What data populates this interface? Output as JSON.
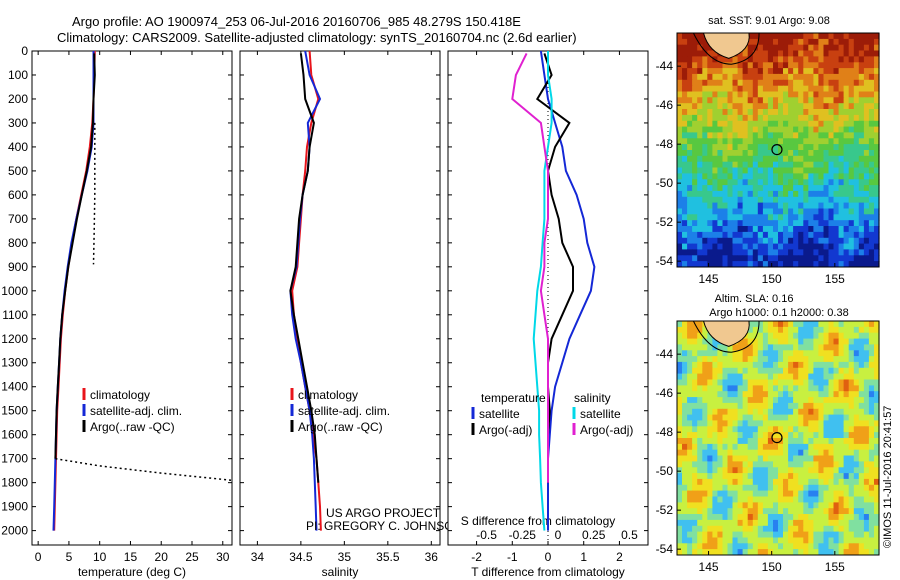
{
  "header": {
    "line1": "Argo profile: AO 1900974_253 06-Jul-2016 20160706_985 48.279S 150.418E",
    "line2": "Climatology: CARS2009. Satellite-adjusted climatology: synTS_20160704.nc (2.6d earlier)"
  },
  "chart_data": [
    {
      "type": "line",
      "panel": "temperature",
      "xlabel": "temperature (deg C)",
      "xlim": [
        -1,
        31.5
      ],
      "ylim": [
        2060,
        0
      ],
      "xticks": [
        0,
        5,
        10,
        15,
        20,
        25,
        30
      ],
      "yticks": [
        0,
        100,
        200,
        300,
        400,
        500,
        600,
        700,
        800,
        900,
        1000,
        1100,
        1200,
        1300,
        1400,
        1500,
        1600,
        1700,
        1800,
        1900,
        2000
      ],
      "legend": [
        "climatology",
        "satellite-adj. clim.",
        "Argo(..raw -QC)"
      ],
      "series": [
        {
          "name": "climatology",
          "color": "#e8141b",
          "x": [
            9.2,
            9.1,
            9.0,
            8.8,
            8.4,
            7.8,
            7.0,
            6.2,
            5.5,
            4.9,
            4.4,
            4.0,
            3.7,
            3.5,
            3.3,
            3.1,
            3.0,
            2.9,
            2.8,
            2.7,
            2.6
          ],
          "y": [
            0,
            100,
            200,
            300,
            400,
            500,
            600,
            700,
            800,
            900,
            1000,
            1100,
            1200,
            1300,
            1400,
            1500,
            1600,
            1700,
            1800,
            1900,
            2000
          ]
        },
        {
          "name": "satellite-adj. clim.",
          "color": "#1428d6",
          "x": [
            9.0,
            9.0,
            9.0,
            9.0,
            8.7,
            8.0,
            7.1,
            6.2,
            5.4,
            4.8,
            4.3,
            3.9,
            3.6,
            3.4,
            3.2,
            3.0,
            2.9,
            2.8,
            2.7,
            2.6,
            2.5
          ],
          "y": [
            0,
            100,
            200,
            300,
            400,
            500,
            600,
            700,
            800,
            900,
            1000,
            1100,
            1200,
            1300,
            1400,
            1500,
            1600,
            1700,
            1800,
            1900,
            2000
          ]
        },
        {
          "name": "Argo(..raw -QC)",
          "color": "#000000",
          "x": [
            9.1,
            9.2,
            9.0,
            8.9,
            8.6,
            7.9,
            7.1,
            6.3,
            5.6,
            4.9,
            4.4,
            3.9,
            3.6,
            3.4,
            3.2,
            3.0,
            2.9,
            2.8
          ],
          "y": [
            10,
            100,
            200,
            300,
            400,
            500,
            600,
            700,
            800,
            900,
            1000,
            1100,
            1200,
            1300,
            1400,
            1500,
            1600,
            1700
          ]
        },
        {
          "name": "Argo raw",
          "color": "#000000",
          "dash": true,
          "x": [
            2.8,
            10,
            20,
            31.5
          ],
          "y": [
            1700,
            1730,
            1760,
            1790
          ]
        },
        {
          "name": "Argo raw upper",
          "color": "#000000",
          "dash": true,
          "x": [
            9.2,
            9.2,
            9.2,
            9.1,
            9.0
          ],
          "y": [
            300,
            450,
            600,
            750,
            890
          ]
        }
      ]
    },
    {
      "type": "line",
      "panel": "salinity",
      "xlabel": "salinity",
      "xlim": [
        33.8,
        36.1
      ],
      "ylim": [
        2060,
        0
      ],
      "xticks": [
        34,
        34.5,
        35,
        35.5,
        36
      ],
      "legend": [
        "climatology",
        "satellite-adj. clim.",
        "Argo(..raw -QC)"
      ],
      "series": [
        {
          "name": "climatology",
          "color": "#e8141b",
          "x": [
            34.6,
            34.62,
            34.7,
            34.62,
            34.57,
            34.55,
            34.52,
            34.5,
            34.48,
            34.46,
            34.4,
            34.42,
            34.46,
            34.5,
            34.55,
            34.6,
            34.64,
            34.68,
            34.7,
            34.72,
            34.73
          ],
          "y": [
            0,
            100,
            200,
            300,
            400,
            500,
            600,
            700,
            800,
            900,
            1000,
            1100,
            1200,
            1300,
            1400,
            1500,
            1600,
            1700,
            1800,
            1900,
            2000
          ]
        },
        {
          "name": "satellite-adj. clim.",
          "color": "#1428d6",
          "x": [
            34.55,
            34.6,
            34.72,
            34.58,
            34.6,
            34.58,
            34.52,
            34.49,
            34.47,
            34.45,
            34.38,
            34.4,
            34.44,
            34.5,
            34.55,
            34.6,
            34.63,
            34.65,
            34.66,
            34.67,
            34.68
          ],
          "y": [
            0,
            100,
            200,
            300,
            400,
            500,
            600,
            700,
            800,
            900,
            1000,
            1100,
            1200,
            1300,
            1400,
            1500,
            1600,
            1700,
            1800,
            1900,
            2000
          ]
        },
        {
          "name": "Argo(..raw -QC)",
          "color": "#000000",
          "x": [
            34.5,
            34.53,
            34.55,
            34.65,
            34.6,
            34.58,
            34.52,
            34.48,
            34.46,
            34.44,
            34.38,
            34.42,
            34.47,
            34.52,
            34.57,
            34.62,
            34.66,
            34.68,
            34.7
          ],
          "y": [
            10,
            100,
            200,
            300,
            400,
            500,
            600,
            700,
            800,
            900,
            1000,
            1100,
            1200,
            1300,
            1400,
            1500,
            1600,
            1700,
            1800
          ]
        }
      ],
      "annotations": [
        "US ARGO PROJECT",
        "PI: GREGORY C. JOHNSON"
      ]
    },
    {
      "type": "line",
      "panel": "difference",
      "xlabel": "T difference from climatology",
      "xlabel2": "S difference from climatology",
      "xlim": [
        -2.8,
        2.8
      ],
      "ylim": [
        2060,
        0
      ],
      "xticks": [
        -2,
        -1,
        0,
        1,
        2
      ],
      "xticks2_labels": [
        "-0.5",
        "-0.25",
        "0",
        "0.25",
        "0.5"
      ],
      "legend": {
        "temperature": [
          "satellite",
          "Argo(-adj)"
        ],
        "salinity": [
          "satellite",
          "Argo(-adj)"
        ]
      },
      "series": [
        {
          "name": "satellite",
          "color": "#1428d6",
          "x": [
            -0.2,
            -0.1,
            0.0,
            0.2,
            0.4,
            0.5,
            0.8,
            1.0,
            1.1,
            1.3,
            1.2,
            0.9,
            0.6,
            0.4,
            0.2,
            0.1,
            0.05,
            0.0,
            0.0,
            0.0,
            0.0
          ],
          "y": [
            0,
            100,
            200,
            300,
            400,
            500,
            600,
            700,
            800,
            900,
            1000,
            1100,
            1200,
            1300,
            1400,
            1500,
            1600,
            1700,
            1800,
            1900,
            2000
          ]
        },
        {
          "name": "Argo(-adj)",
          "color": "#000000",
          "x": [
            -0.1,
            0.1,
            -0.3,
            0.6,
            0.2,
            0.0,
            0.1,
            0.3,
            0.4,
            0.7,
            0.7,
            0.4,
            0.1,
            0.0,
            0.0,
            0.05,
            0.0,
            0.0,
            0.0
          ],
          "y": [
            10,
            100,
            200,
            300,
            400,
            500,
            600,
            700,
            800,
            900,
            1000,
            1100,
            1200,
            1300,
            1400,
            1500,
            1600,
            1700,
            1800
          ]
        },
        {
          "name": "satellite S",
          "color": "#00d8e8",
          "x": [
            0.0,
            0.0,
            0.1,
            0.1,
            0.0,
            -0.1,
            -0.1,
            -0.1,
            -0.15,
            -0.2,
            -0.3,
            -0.35,
            -0.4,
            -0.35,
            -0.3,
            -0.25,
            -0.25,
            -0.22,
            -0.2,
            -0.15,
            -0.1
          ],
          "y": [
            0,
            100,
            200,
            300,
            400,
            500,
            600,
            700,
            800,
            900,
            1000,
            1100,
            1200,
            1300,
            1400,
            1500,
            1600,
            1700,
            1800,
            1900,
            2000
          ]
        },
        {
          "name": "Argo S",
          "color": "#e020d0",
          "x": [
            -0.6,
            -0.9,
            -1.0,
            -0.2,
            -0.1,
            0.0,
            0.0,
            0.0,
            -0.1,
            -0.1,
            -0.2,
            -0.1,
            0.0,
            0.0,
            0.0,
            0.0,
            0.0,
            0.0,
            0.0
          ],
          "y": [
            10,
            100,
            200,
            300,
            400,
            500,
            600,
            700,
            800,
            900,
            1000,
            1100,
            1200,
            1300,
            1400,
            1500,
            1600,
            1700,
            1800
          ]
        }
      ]
    },
    {
      "type": "heatmap",
      "panel": "sst-map",
      "title": "sat. SST: 9.01  Argo: 9.08",
      "xticks": [
        145,
        150,
        155
      ],
      "yticks": [
        -44,
        -46,
        -48,
        -50,
        -52,
        -54
      ],
      "xlim": [
        142.5,
        158.5
      ],
      "ylim": [
        -54.3,
        -42.3
      ],
      "profile_location": [
        150.418,
        -48.279
      ]
    },
    {
      "type": "heatmap",
      "panel": "sla-map",
      "title": "Altim. SLA: 0.16",
      "subtitle": "Argo h1000: 0.1  h2000: 0.38",
      "xticks": [
        145,
        150,
        155
      ],
      "yticks": [
        -44,
        -46,
        -48,
        -50,
        -52,
        -54
      ],
      "xlim": [
        142.5,
        158.5
      ],
      "ylim": [
        -54.3,
        -42.3
      ],
      "profile_location": [
        150.418,
        -48.279
      ]
    }
  ],
  "credit": "©IMOS 11-Jul-2016 20:41:57"
}
